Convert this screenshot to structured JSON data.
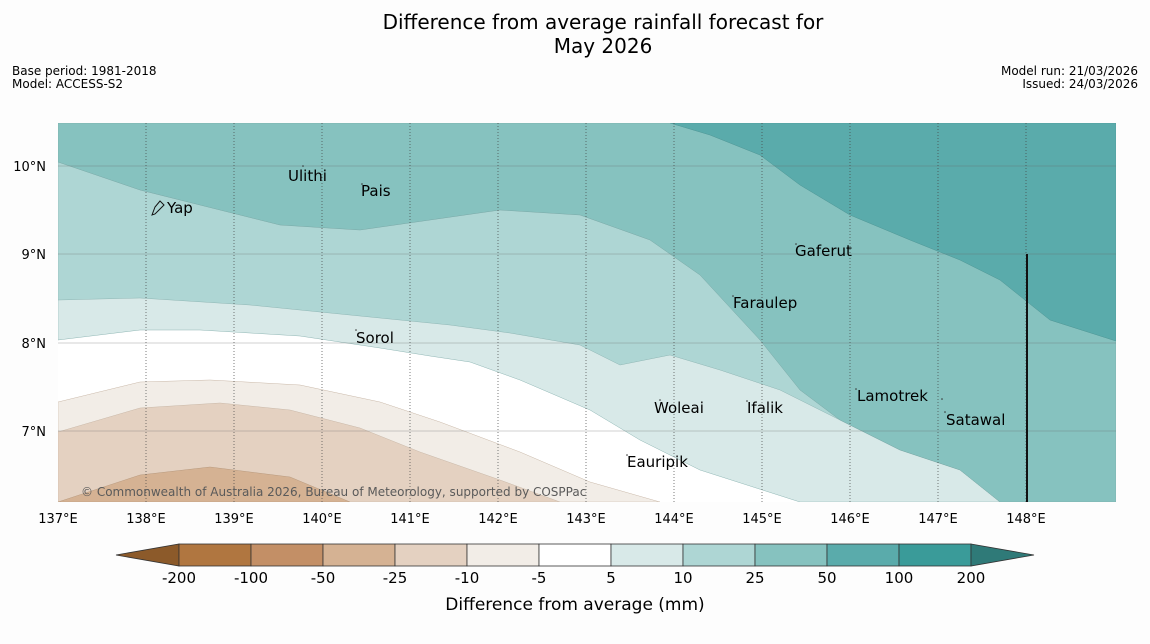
{
  "title": {
    "line1": "Difference from average rainfall forecast for",
    "line2": "May 2026"
  },
  "meta_left": {
    "base_period": "Base period: 1981-2018",
    "model": "Model: ACCESS-S2"
  },
  "meta_right": {
    "model_run": "Model run: 21/03/2026",
    "issued": "Issued: 24/03/2026"
  },
  "lat_labels": [
    "10°N",
    "9°N",
    "8°N",
    "7°N"
  ],
  "lon_labels": [
    "137°E",
    "138°E",
    "139°E",
    "140°E",
    "141°E",
    "142°E",
    "143°E",
    "144°E",
    "145°E",
    "146°E",
    "147°E",
    "148°E"
  ],
  "places": [
    "Ulithi",
    "Pais",
    "Yap",
    "Gaferut",
    "Faraulep",
    "Sorol",
    "Lamotrek",
    "Woleai",
    "Ifalik",
    "Satawal",
    "Eauripik"
  ],
  "copyright": "© Commonwealth of Australia 2026, Bureau of Meteorology, supported by COSPPac",
  "colorbar": {
    "ticks": [
      "-200",
      "-100",
      "-50",
      "-25",
      "-10",
      "-5",
      "5",
      "10",
      "25",
      "50",
      "100",
      "200"
    ],
    "label": "Difference from average (mm)",
    "colors": [
      "#8c5a2a",
      "#b07640",
      "#c38f66",
      "#d5b293",
      "#e4d1c1",
      "#f2ede7",
      "#ffffff",
      "#d8e9e8",
      "#aed6d4",
      "#86c2bf",
      "#5aabab",
      "#3a9b99",
      "#2f7a78"
    ]
  }
}
